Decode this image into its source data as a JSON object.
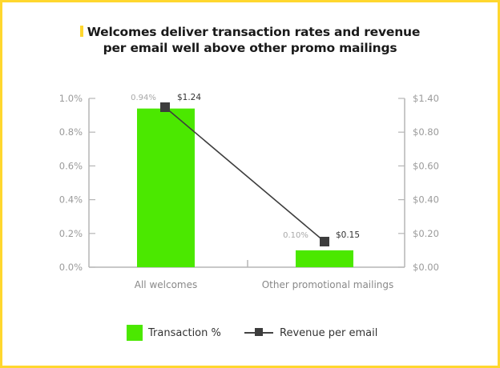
{
  "title_line1": "Welcomes deliver transaction rates and revenue",
  "title_line2": "per email well above other promo mailings",
  "colors": {
    "border": "#FFD72E",
    "bar": "#4BE800",
    "line": "#3d3d3d",
    "axis": "#b5b5b5"
  },
  "chart_data": {
    "type": "bar+line",
    "title": "Welcomes deliver transaction rates and revenue per email well above other promo mailings",
    "categories": [
      "All welcomes",
      "Other promotional mailings"
    ],
    "series": [
      {
        "name": "Transaction %",
        "type": "bar",
        "axis": "left",
        "values": [
          0.94,
          0.1
        ],
        "labels": [
          "0.94%",
          "0.10%"
        ]
      },
      {
        "name": "Revenue per email",
        "type": "line",
        "axis": "right",
        "values": [
          1.24,
          0.15
        ],
        "labels": [
          "$1.24",
          "$0.15"
        ]
      }
    ],
    "left_axis": {
      "ticks": [
        "0.0%",
        "0.2%",
        "0.4%",
        "0.6%",
        "0.8%",
        "1.0%"
      ],
      "ylim": [
        0,
        1.0
      ]
    },
    "right_axis": {
      "ticks": [
        "$0.00",
        "$0.20",
        "$0.40",
        "$0.60",
        "$0.80",
        "$1.40"
      ]
    },
    "grid": false,
    "legend_position": "bottom"
  },
  "legend": {
    "bar_label": "Transaction %",
    "line_label": "Revenue per email"
  }
}
